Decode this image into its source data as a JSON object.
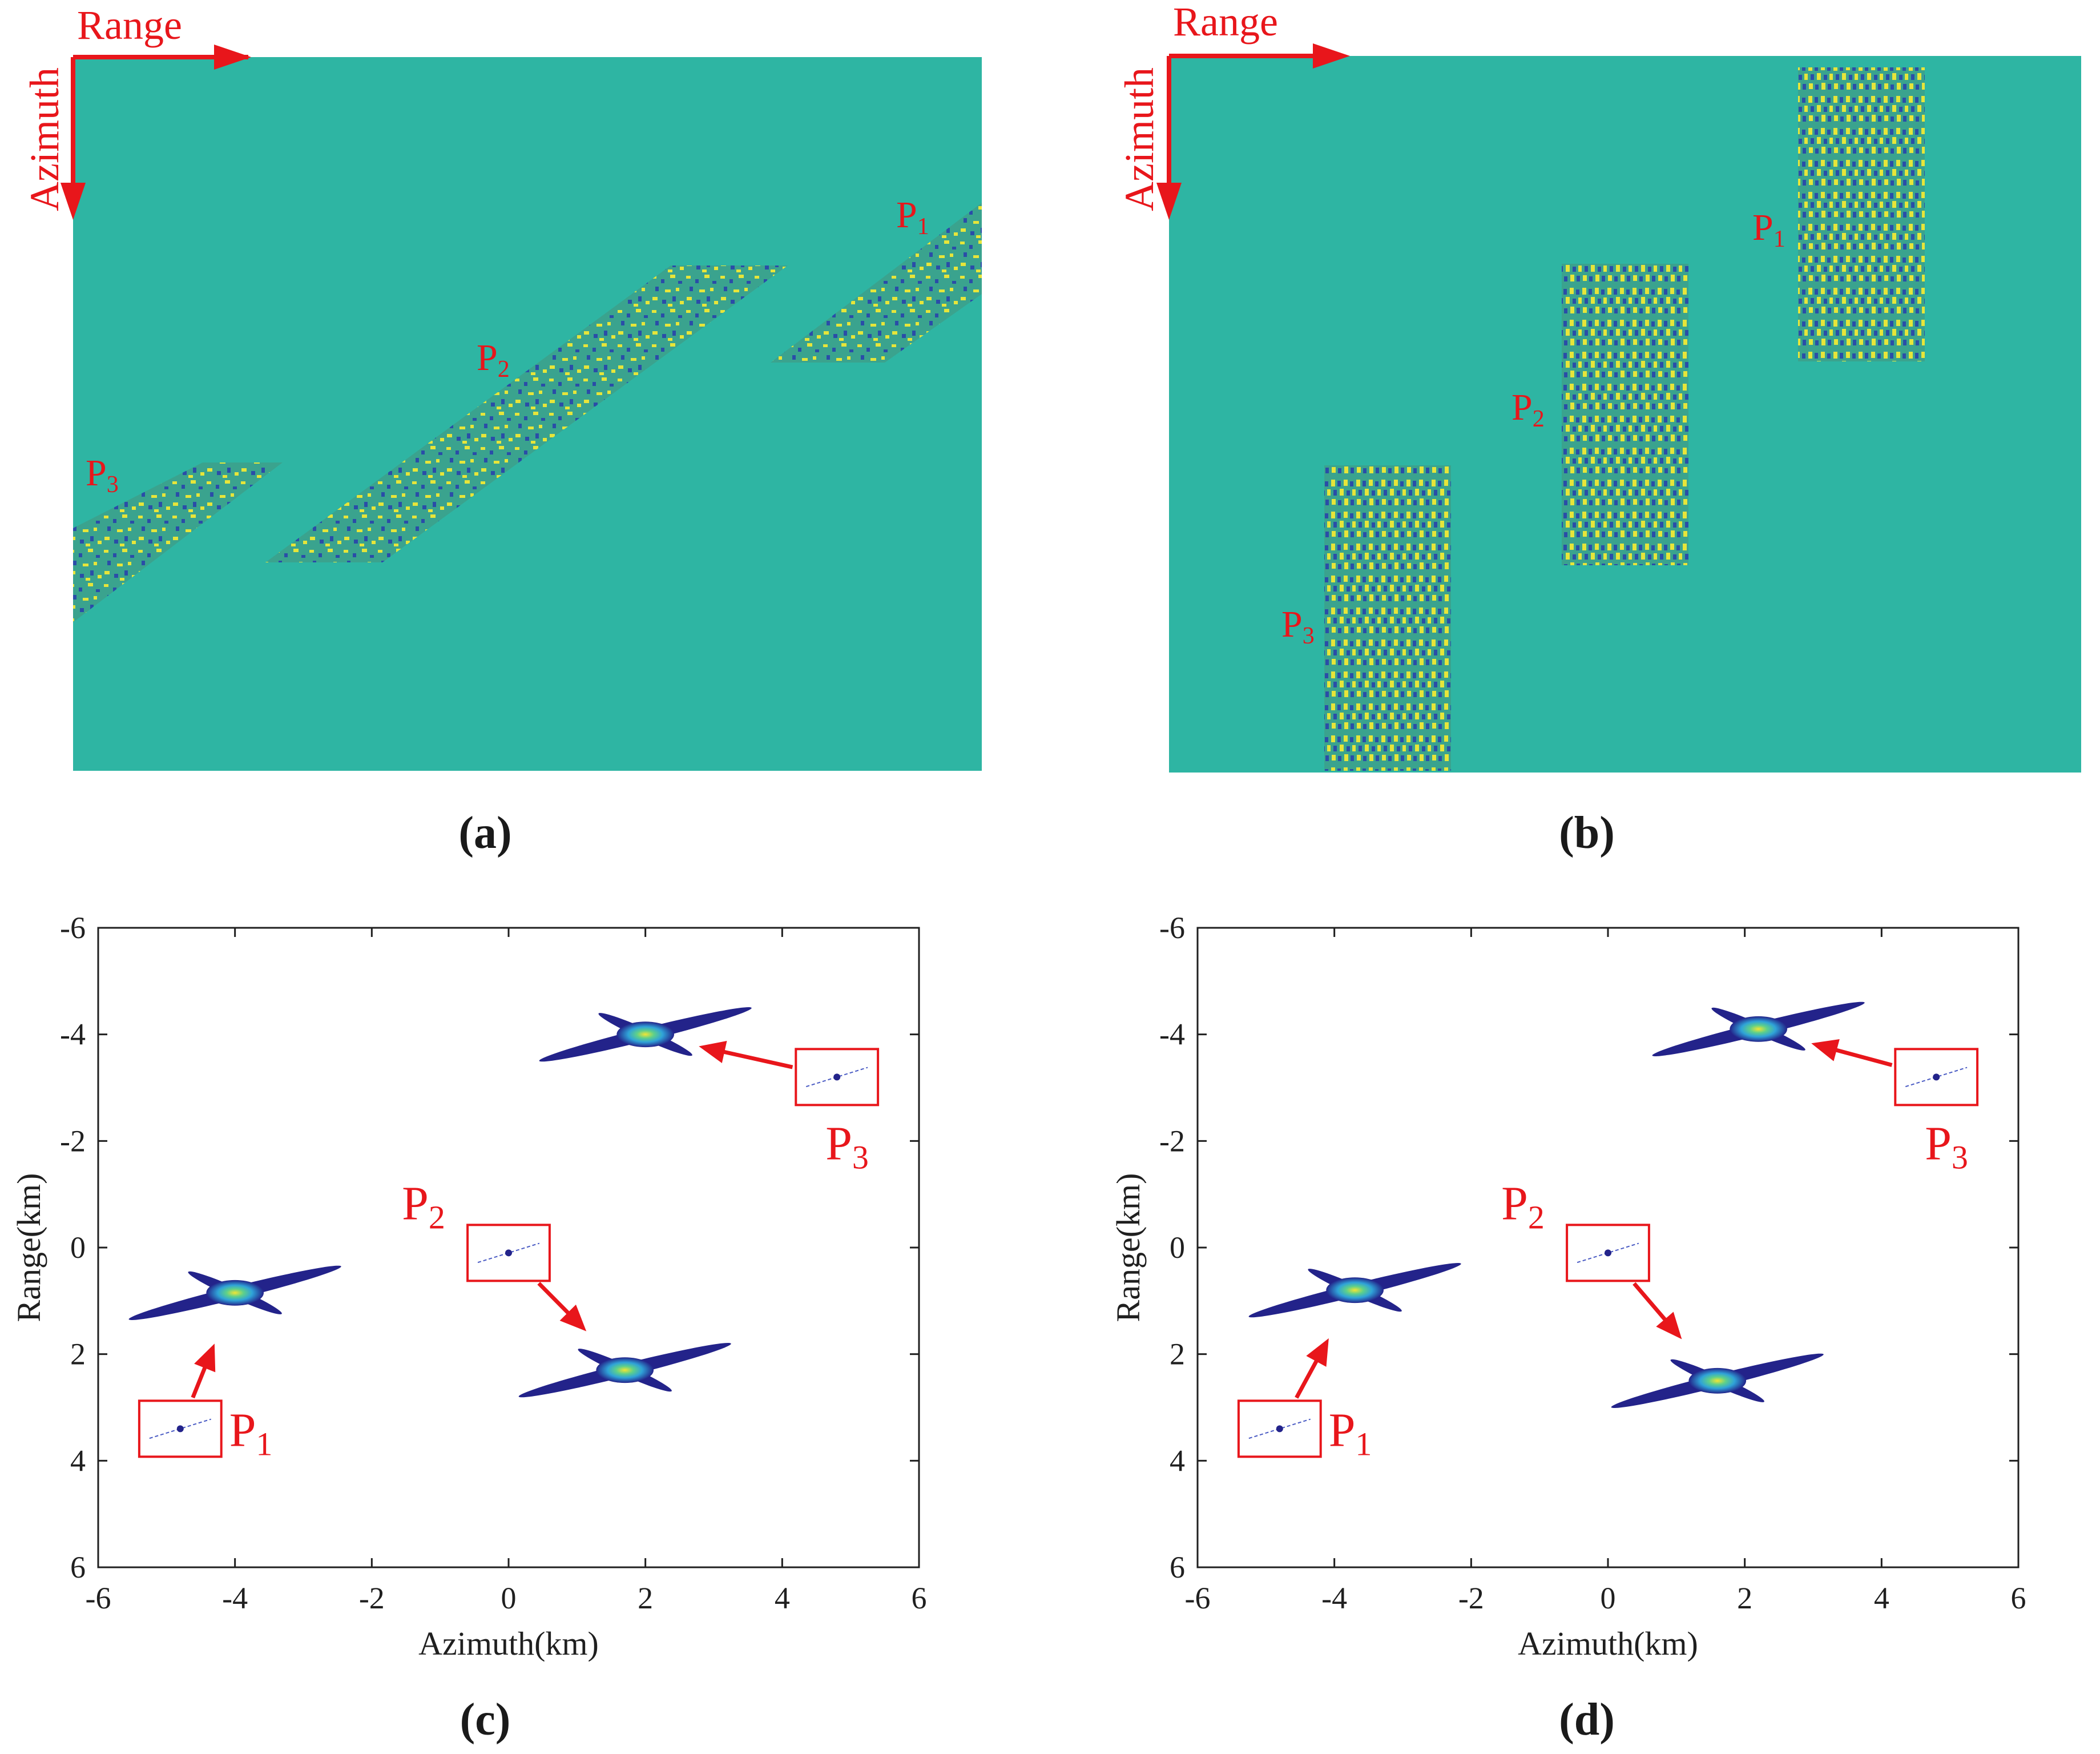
{
  "figure": {
    "panels": [
      {
        "id": "a",
        "caption": "(a)"
      },
      {
        "id": "b",
        "caption": "(b)"
      },
      {
        "id": "c",
        "caption": "(c)"
      },
      {
        "id": "d",
        "caption": "(d)"
      }
    ]
  },
  "colors": {
    "background": "#2EB5A3",
    "arrow": "#E8161B",
    "label": "#E8161B",
    "axis": "#1F1F1F",
    "speckle_yellow": "#E6E53A",
    "speckle_blue": "#2A4DA8",
    "speckle_teal": "#3AA38E",
    "peak_blue": "#23238A",
    "peak_mid": "#2FA3D8",
    "peak_hot": "#F2E534"
  },
  "top_panels": {
    "range_label": "Range",
    "azimuth_label": "Azimuth",
    "targets": {
      "p1": "P",
      "p2": "P",
      "p3": "P",
      "sub1": "1",
      "sub2": "2",
      "sub3": "3"
    }
  },
  "chart_data": [
    {
      "panel": "c",
      "type": "scatter",
      "xlabel": "Azimuth(km)",
      "ylabel": "Range(km)",
      "xlim": [
        -6,
        6
      ],
      "ylim": [
        -6,
        6
      ],
      "y_inverted": true,
      "xticks": [
        -6,
        -4,
        -2,
        0,
        2,
        4,
        6
      ],
      "yticks": [
        -6,
        -4,
        -2,
        0,
        2,
        4,
        6
      ],
      "points": [
        {
          "label": "P1",
          "sub": "1",
          "x": -4.0,
          "y": 0.85
        },
        {
          "label": "P2",
          "sub": "2",
          "x": 1.7,
          "y": 2.3
        },
        {
          "label": "P3",
          "sub": "3",
          "x": 2.0,
          "y": -4.0
        }
      ],
      "insets": [
        {
          "target": "P1",
          "x": -4.8,
          "y": 3.4
        },
        {
          "target": "P2",
          "x": 0.0,
          "y": 0.1
        },
        {
          "target": "P3",
          "x": 4.8,
          "y": -3.2
        }
      ]
    },
    {
      "panel": "d",
      "type": "scatter",
      "xlabel": "Azimuth(km)",
      "ylabel": "Range(km)",
      "xlim": [
        -6,
        6
      ],
      "ylim": [
        -6,
        6
      ],
      "y_inverted": true,
      "xticks": [
        -6,
        -4,
        -2,
        0,
        2,
        4,
        6
      ],
      "yticks": [
        -6,
        -4,
        -2,
        0,
        2,
        4,
        6
      ],
      "points": [
        {
          "label": "P1",
          "sub": "1",
          "x": -3.7,
          "y": 0.8
        },
        {
          "label": "P2",
          "sub": "2",
          "x": 1.6,
          "y": 2.5
        },
        {
          "label": "P3",
          "sub": "3",
          "x": 2.2,
          "y": -4.1
        }
      ],
      "insets": [
        {
          "target": "P1",
          "x": -4.8,
          "y": 3.4
        },
        {
          "target": "P2",
          "x": 0.0,
          "y": 0.1
        },
        {
          "target": "P3",
          "x": 4.8,
          "y": -3.2
        }
      ]
    }
  ]
}
